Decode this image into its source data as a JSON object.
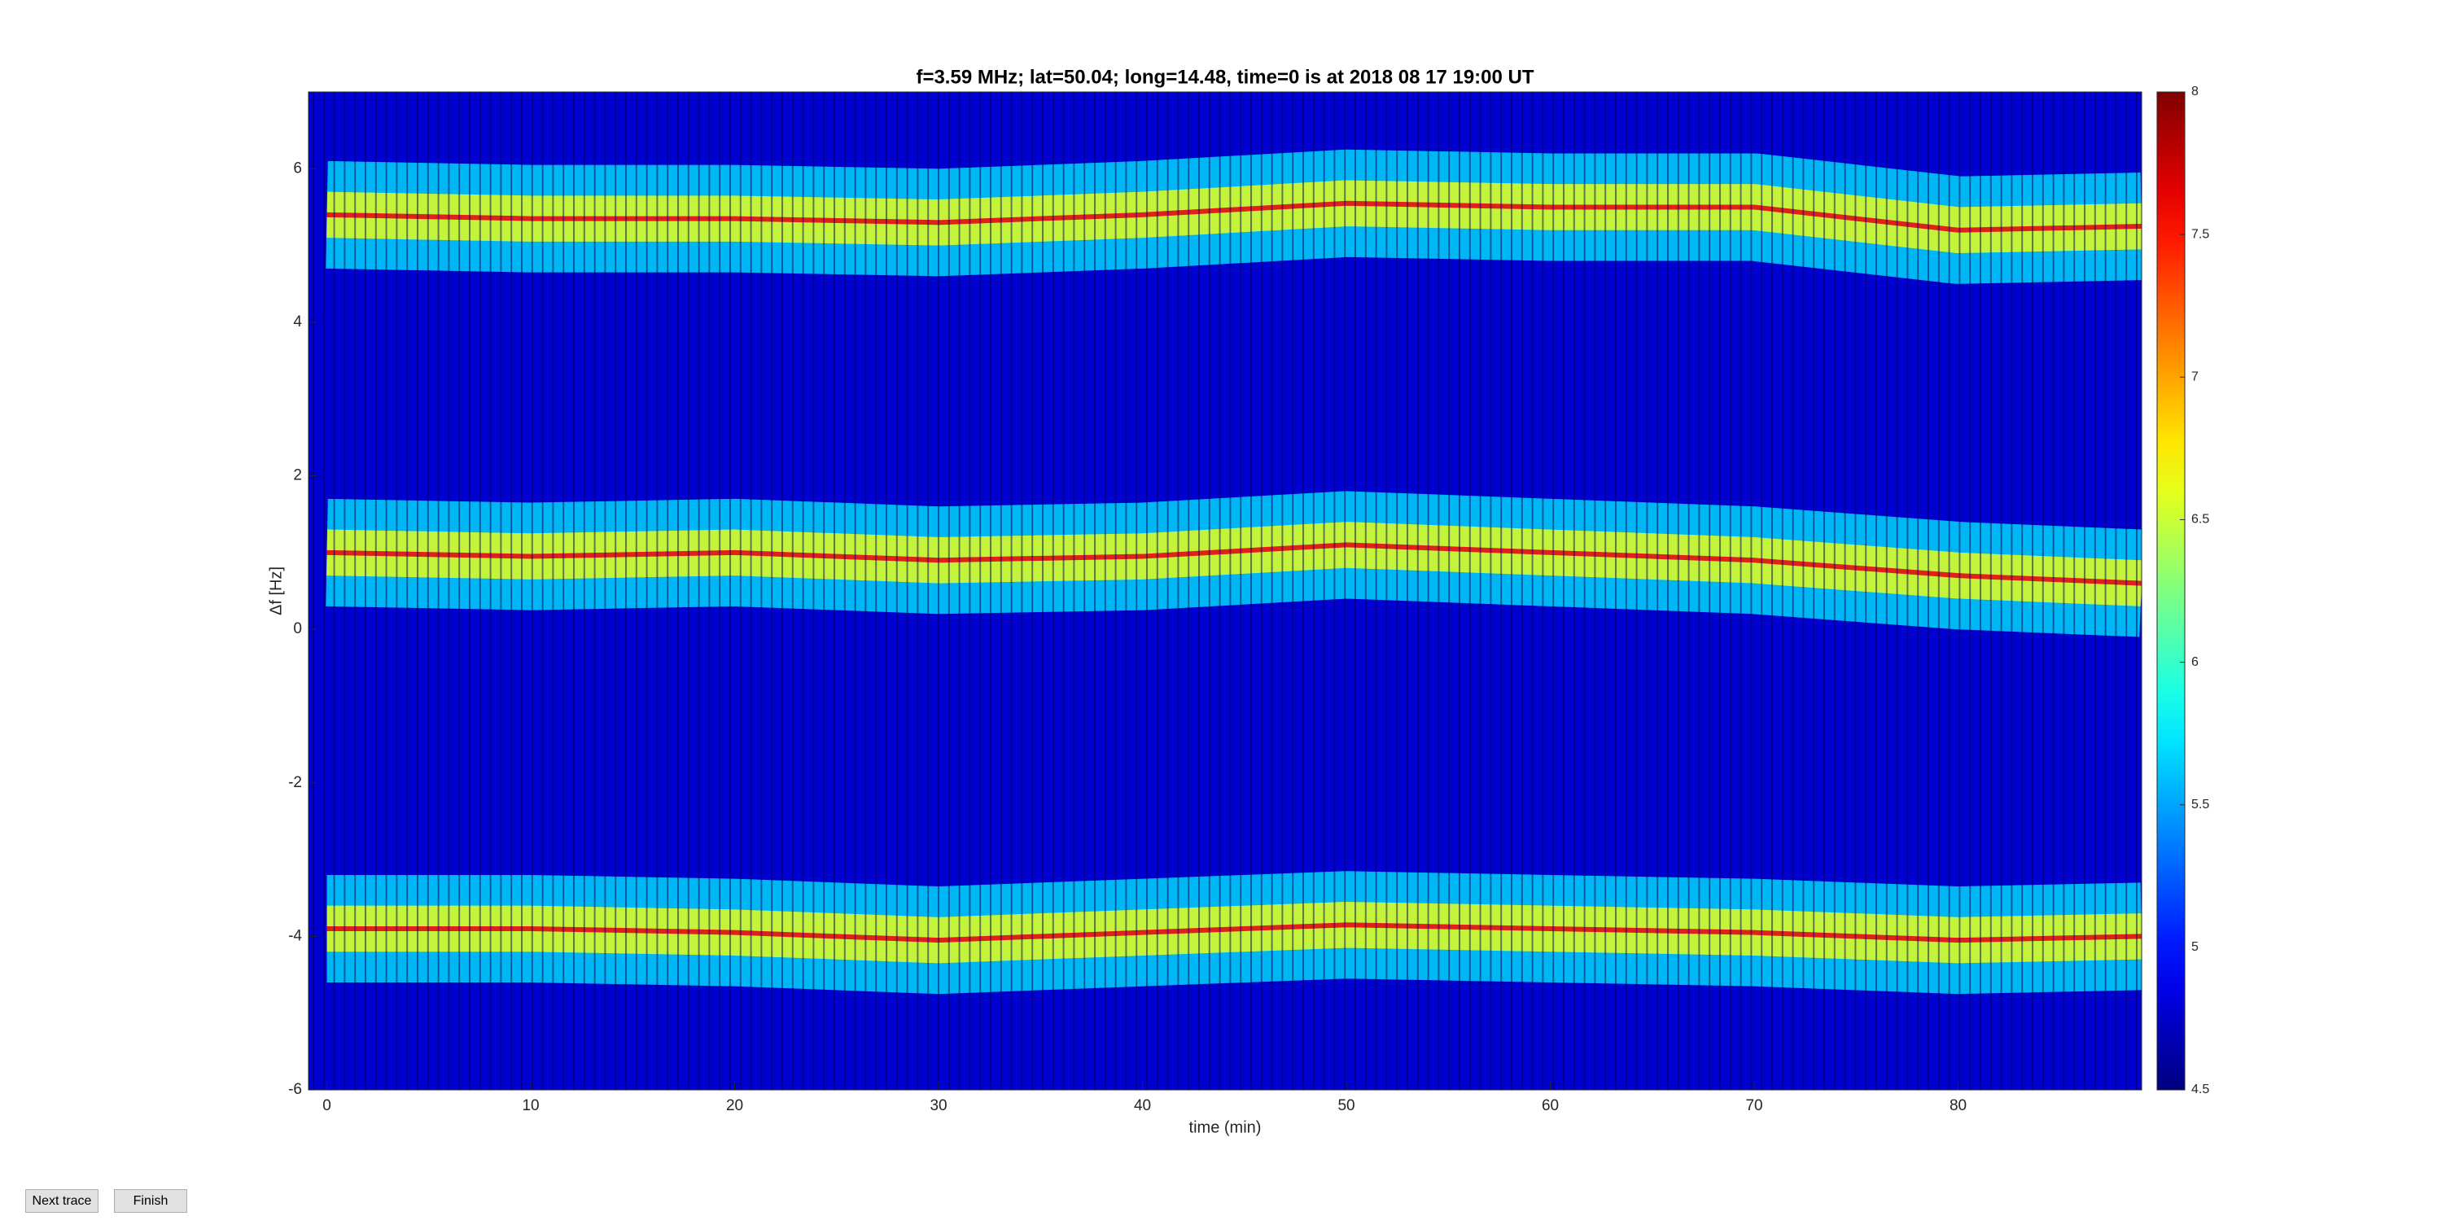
{
  "chart_data": {
    "type": "line",
    "title": "f=3.59 MHz;  lat=50.04; long=14.48, time=0 is at 2018 08 17 19:00 UT",
    "xlabel": "time (min)",
    "ylabel": "Δf [Hz]",
    "x": [
      0,
      10,
      20,
      30,
      40,
      50,
      60,
      70,
      80,
      89
    ],
    "series": [
      {
        "color": "#e0201b",
        "values": [
          5.4,
          5.35,
          5.35,
          5.3,
          5.4,
          5.55,
          5.5,
          5.5,
          5.2,
          5.25
        ]
      },
      {
        "color": "#e0201b",
        "values": [
          1.0,
          0.95,
          1.0,
          0.9,
          0.95,
          1.1,
          1.0,
          0.9,
          0.7,
          0.6
        ]
      },
      {
        "color": "#e0201b",
        "values": [
          -3.9,
          -3.9,
          -3.95,
          -4.05,
          -3.95,
          -3.85,
          -3.9,
          -3.95,
          -4.05,
          -4.0
        ]
      }
    ],
    "xlim": [
      -0.9,
      89
    ],
    "ylim": [
      -6,
      7
    ],
    "xticks": [
      0,
      10,
      20,
      30,
      40,
      50,
      60,
      70,
      80
    ],
    "yticks": [
      -6,
      -4,
      -2,
      0,
      2,
      4,
      6
    ],
    "colormap": "jet",
    "clim": [
      4.5,
      8
    ],
    "cticks": [
      4.5,
      5,
      5.5,
      6,
      6.5,
      7,
      7.5,
      8
    ]
  },
  "buttons": [
    "Next trace",
    "Finish"
  ]
}
